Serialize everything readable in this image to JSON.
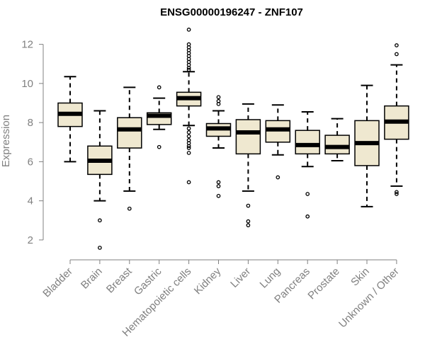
{
  "chart_data": {
    "type": "boxplot",
    "title": "ENSG00000196247 - ZNF107",
    "xlabel": "",
    "ylabel": "Expression",
    "ylim": [
      1.2,
      13.0
    ],
    "yticks": [
      2,
      4,
      6,
      8,
      10,
      12
    ],
    "grid": false,
    "legend": "none",
    "colors": {
      "box_fill": "#efe8d0",
      "box_stroke": "#000000",
      "median": "#000000",
      "axis": "#808080",
      "text": "#808080"
    },
    "categories": [
      "Bladder",
      "Brain",
      "Breast",
      "Gastric",
      "Hematopoietic cells",
      "Kidney",
      "Liver",
      "Lung",
      "Pancreas",
      "Prostate",
      "Skin",
      "Unknown / Other"
    ],
    "boxes": [
      {
        "name": "Bladder",
        "whisker_low": 6.0,
        "q1": 7.8,
        "median": 8.45,
        "q3": 9.0,
        "whisker_high": 10.35,
        "outliers": []
      },
      {
        "name": "Brain",
        "whisker_low": 4.0,
        "q1": 5.35,
        "median": 6.05,
        "q3": 6.8,
        "whisker_high": 8.6,
        "outliers": [
          3.0,
          1.6
        ]
      },
      {
        "name": "Breast",
        "whisker_low": 4.5,
        "q1": 6.7,
        "median": 7.65,
        "q3": 8.25,
        "whisker_high": 9.8,
        "outliers": [
          3.6
        ]
      },
      {
        "name": "Gastric",
        "whisker_low": 7.65,
        "q1": 7.9,
        "median": 8.35,
        "q3": 8.5,
        "whisker_high": 9.25,
        "outliers": [
          9.8,
          6.75
        ]
      },
      {
        "name": "Hematopoietic cells",
        "whisker_low": 7.85,
        "q1": 8.85,
        "median": 9.25,
        "q3": 9.55,
        "whisker_high": 10.6,
        "outliers": [
          12.75,
          12.0,
          11.85,
          11.7,
          11.55,
          11.4,
          11.25,
          11.1,
          10.95,
          10.8,
          10.7,
          7.7,
          7.5,
          7.3,
          7.1,
          6.95,
          6.8,
          6.7,
          6.45,
          4.95
        ]
      },
      {
        "name": "Kidney",
        "whisker_low": 6.7,
        "q1": 7.3,
        "median": 7.7,
        "q3": 7.95,
        "whisker_high": 8.6,
        "outliers": [
          9.3,
          9.1,
          8.95,
          4.95,
          4.75,
          4.25
        ]
      },
      {
        "name": "Liver",
        "whisker_low": 4.5,
        "q1": 6.4,
        "median": 7.5,
        "q3": 8.15,
        "whisker_high": 8.95,
        "outliers": [
          3.75,
          2.95,
          2.75
        ]
      },
      {
        "name": "Lung",
        "whisker_low": 6.35,
        "q1": 7.0,
        "median": 7.65,
        "q3": 8.1,
        "whisker_high": 8.9,
        "outliers": [
          5.2
        ]
      },
      {
        "name": "Pancreas",
        "whisker_low": 5.75,
        "q1": 6.4,
        "median": 6.85,
        "q3": 7.6,
        "whisker_high": 8.55,
        "outliers": [
          4.35,
          3.2
        ]
      },
      {
        "name": "Prostate",
        "whisker_low": 6.05,
        "q1": 6.4,
        "median": 6.75,
        "q3": 7.35,
        "whisker_high": 8.2,
        "outliers": []
      },
      {
        "name": "Skin",
        "whisker_low": 3.7,
        "q1": 5.8,
        "median": 6.95,
        "q3": 8.1,
        "whisker_high": 9.9,
        "outliers": []
      },
      {
        "name": "Unknown / Other",
        "whisker_low": 4.75,
        "q1": 7.15,
        "median": 8.05,
        "q3": 8.85,
        "whisker_high": 10.95,
        "outliers": [
          11.95,
          11.5,
          4.45,
          4.35
        ]
      }
    ]
  }
}
